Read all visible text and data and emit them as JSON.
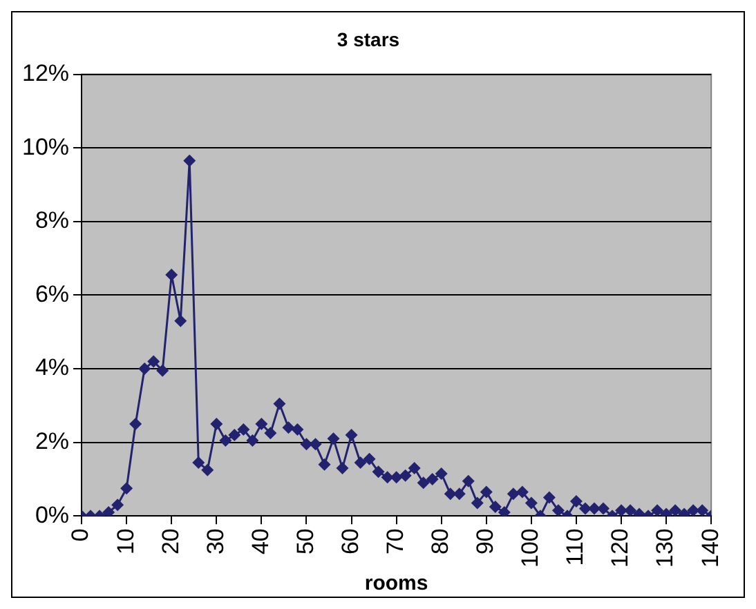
{
  "chart_data": {
    "type": "line",
    "title": "3 stars",
    "xlabel": "rooms",
    "x": [
      0,
      2,
      4,
      6,
      8,
      10,
      12,
      14,
      16,
      18,
      20,
      22,
      24,
      26,
      28,
      30,
      32,
      34,
      36,
      38,
      40,
      42,
      44,
      46,
      48,
      50,
      52,
      54,
      56,
      58,
      60,
      62,
      64,
      66,
      68,
      70,
      72,
      74,
      76,
      78,
      80,
      82,
      84,
      86,
      88,
      90,
      92,
      94,
      96,
      98,
      100,
      102,
      104,
      106,
      108,
      110,
      112,
      114,
      116,
      118,
      120,
      122,
      124,
      126,
      128,
      130,
      132,
      134,
      136,
      138,
      140
    ],
    "series": [
      {
        "color": "#22226e",
        "values": [
          0,
          0,
          0,
          0.1,
          0.3,
          0.75,
          2.5,
          4.0,
          4.2,
          3.95,
          6.55,
          5.3,
          9.65,
          1.45,
          1.25,
          2.5,
          2.05,
          2.2,
          2.35,
          2.05,
          2.5,
          2.25,
          3.05,
          2.4,
          2.35,
          1.95,
          1.95,
          1.4,
          2.1,
          1.3,
          2.2,
          1.45,
          1.55,
          1.2,
          1.05,
          1.05,
          1.1,
          1.3,
          0.9,
          1.0,
          1.15,
          0.6,
          0.6,
          0.95,
          0.35,
          0.65,
          0.25,
          0.1,
          0.6,
          0.65,
          0.35,
          0,
          0.5,
          0.15,
          0,
          0.4,
          0.2,
          0.2,
          0.2,
          0,
          0.15,
          0.15,
          0.05,
          0,
          0.15,
          0.05,
          0.15,
          0.05,
          0.15,
          0.15,
          0
        ]
      }
    ],
    "xlim": [
      0,
      140
    ],
    "xticks": [
      0,
      10,
      20,
      30,
      40,
      50,
      60,
      70,
      80,
      90,
      100,
      110,
      120,
      130,
      140
    ],
    "ylim": [
      0,
      12
    ],
    "yticks": [
      {
        "value": 0,
        "label": "0%"
      },
      {
        "value": 2,
        "label": "2%"
      },
      {
        "value": 4,
        "label": "4%"
      },
      {
        "value": 6,
        "label": "6%"
      },
      {
        "value": 8,
        "label": "8%"
      },
      {
        "value": 10,
        "label": "10%"
      },
      {
        "value": 12,
        "label": "12%"
      }
    ],
    "grid": "y",
    "legend": false,
    "marker": "diamond",
    "line_style": "solid"
  }
}
